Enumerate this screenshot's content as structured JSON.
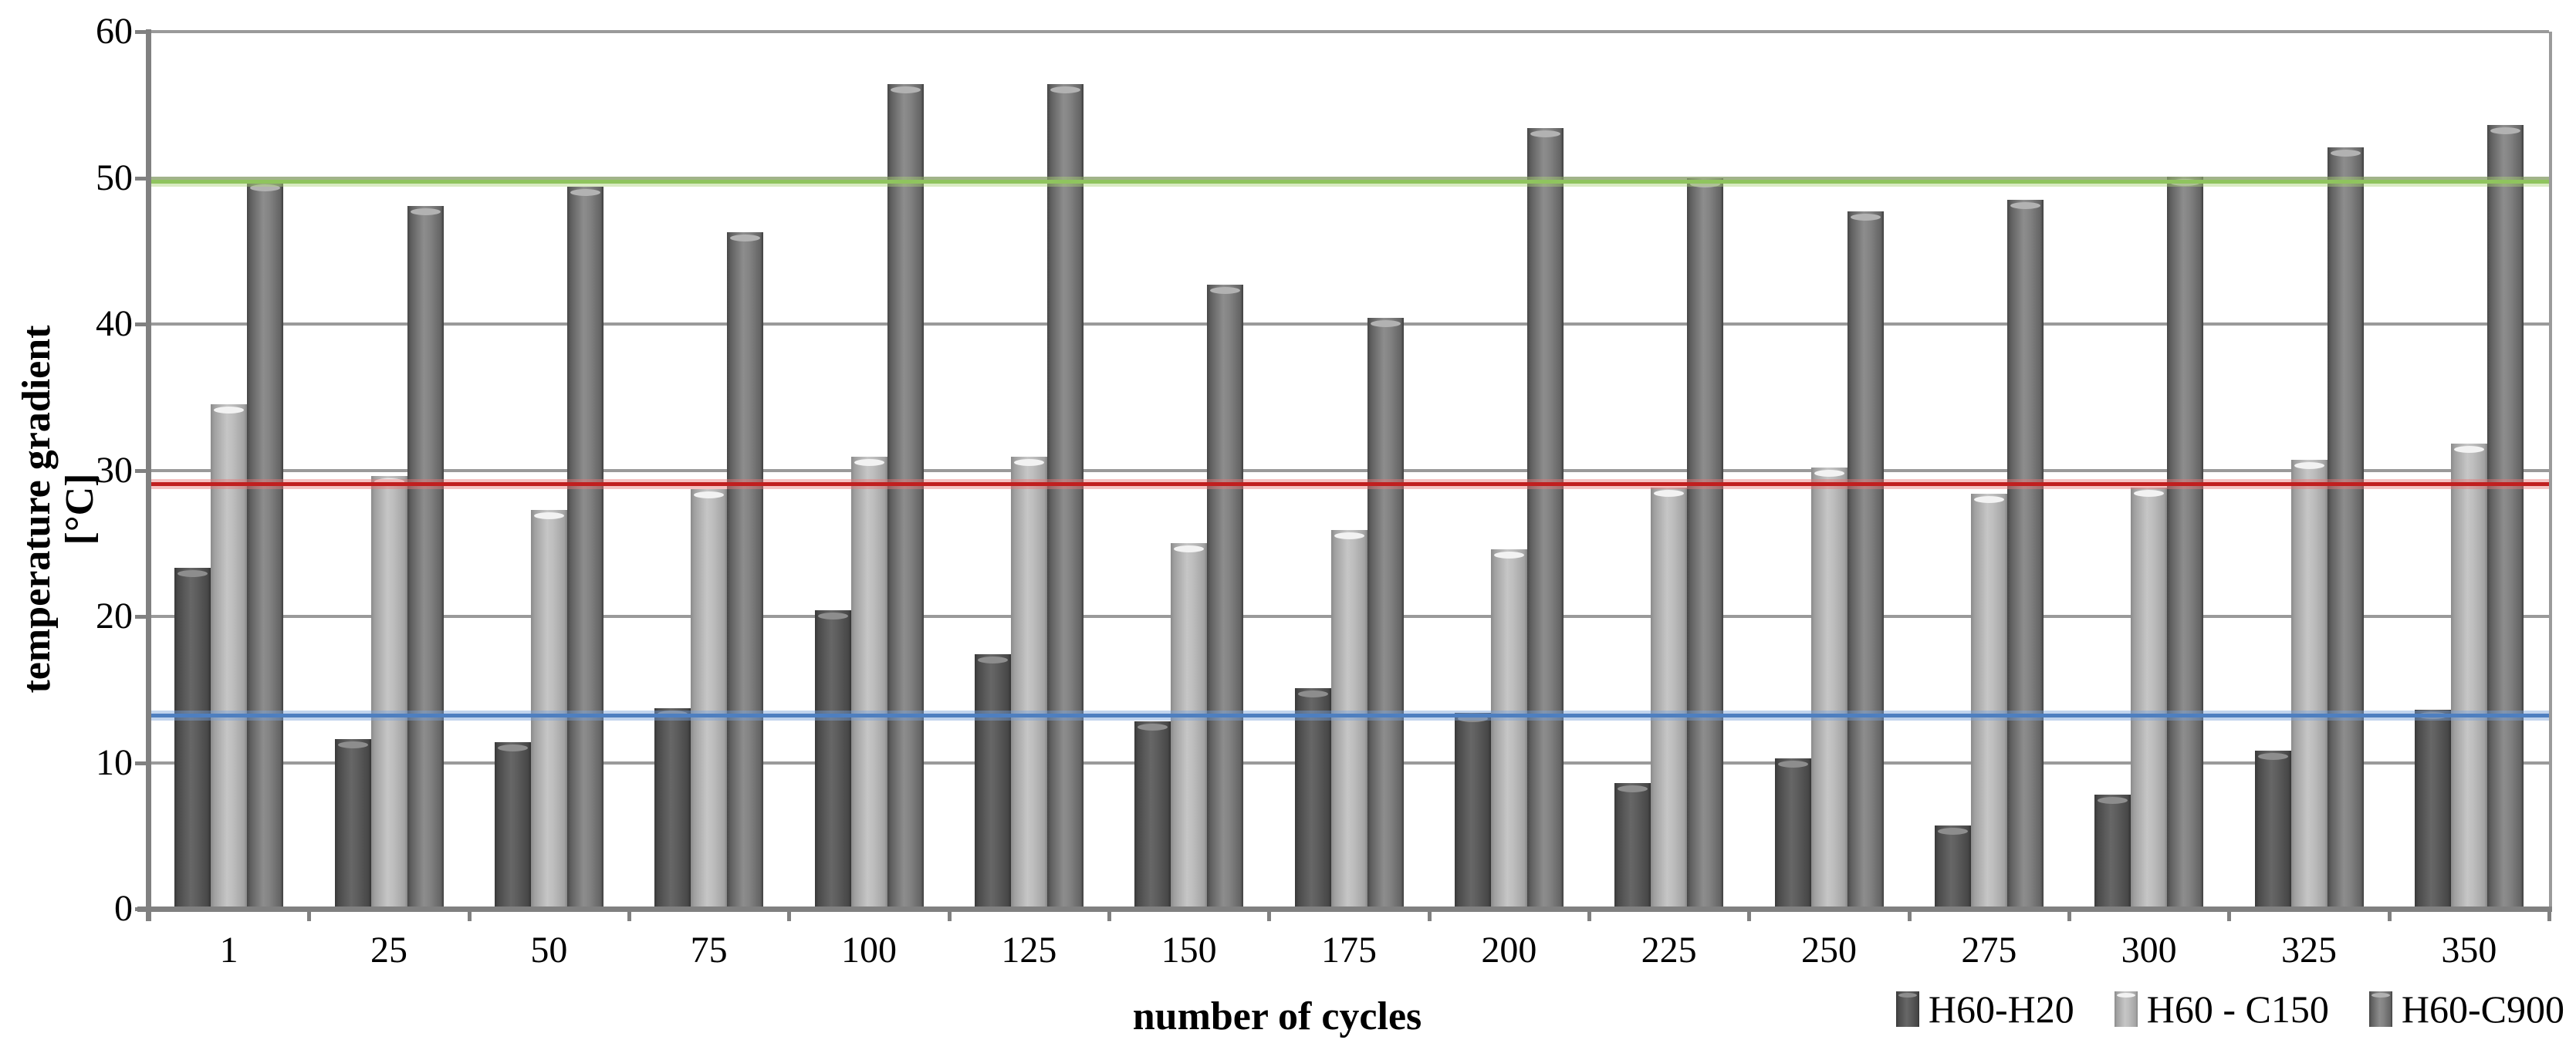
{
  "chart_data": {
    "type": "bar",
    "title": "",
    "xlabel": "number of cycles",
    "ylabel": "temperature gradient [°C]",
    "ylim": [
      0,
      60
    ],
    "yticks": [
      0,
      10,
      20,
      30,
      40,
      50,
      60
    ],
    "grid": true,
    "legend_position": "bottom-right",
    "categories": [
      "1",
      "25",
      "50",
      "75",
      "100",
      "125",
      "150",
      "175",
      "200",
      "225",
      "250",
      "275",
      "300",
      "325",
      "350"
    ],
    "series": [
      {
        "name": "H60-H20",
        "color": "#555555",
        "values": [
          23.3,
          11.6,
          11.4,
          13.7,
          20.4,
          17.4,
          12.8,
          15.1,
          13.4,
          8.6,
          10.3,
          5.7,
          7.8,
          10.8,
          13.6
        ]
      },
      {
        "name": "H60 - C150",
        "color": "#b8b8b8",
        "values": [
          34.5,
          29.6,
          27.3,
          28.7,
          30.9,
          30.9,
          25.0,
          25.9,
          24.6,
          28.8,
          30.2,
          28.4,
          28.8,
          30.7,
          31.8
        ]
      },
      {
        "name": "H60-C900",
        "color": "#7f7f7f",
        "values": [
          49.7,
          48.1,
          49.4,
          46.3,
          56.4,
          56.4,
          42.7,
          40.4,
          53.4,
          50.0,
          47.7,
          48.5,
          50.1,
          52.1,
          53.6
        ]
      }
    ],
    "reference_lines": [
      {
        "name": "blue-line",
        "value": 13.2,
        "color": "#4e7fc0",
        "halo": "rgba(120,160,215,0.45)"
      },
      {
        "name": "red-line",
        "value": 29.0,
        "color": "#c01f1f",
        "halo": "rgba(230,120,120,0.45)"
      },
      {
        "name": "green-line",
        "value": 49.7,
        "color": "#8fc45e",
        "halo": "rgba(170,210,120,0.45)"
      }
    ]
  }
}
